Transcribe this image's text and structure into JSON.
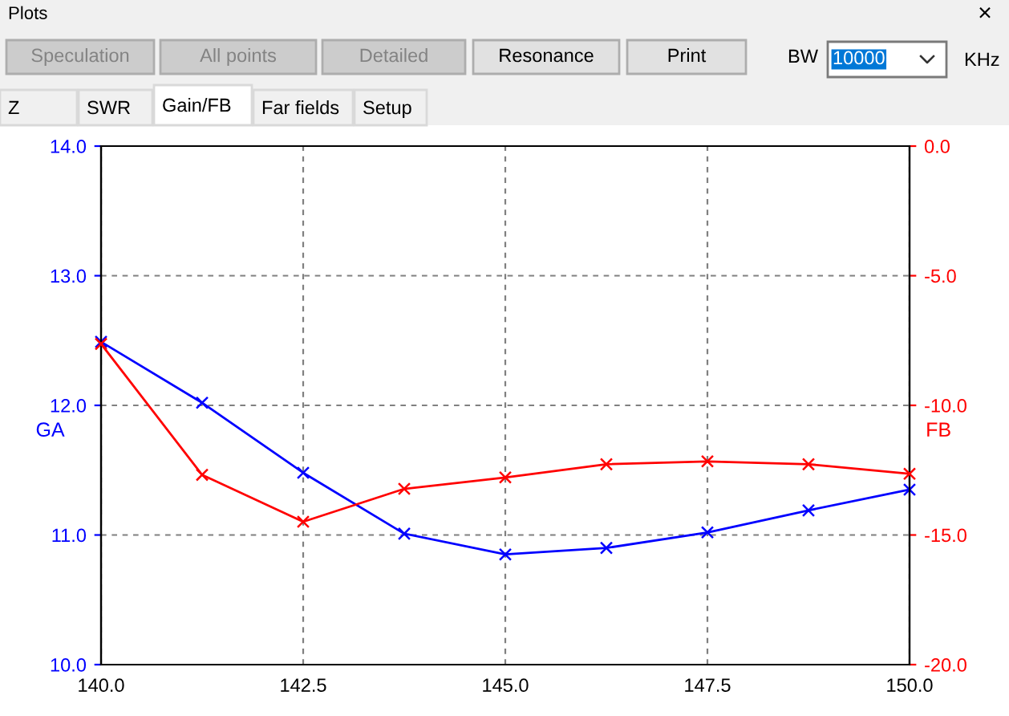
{
  "chart_data": {
    "type": "line",
    "title": "Plots",
    "ylabel": "GA",
    "y2label": "FB",
    "x": [
      140.0,
      141.25,
      142.5,
      143.75,
      145.0,
      146.25,
      147.5,
      148.75,
      150.0
    ],
    "series": [
      {
        "color": "#0000ff",
        "values": [
          12.49,
          12.02,
          11.48,
          11.01,
          10.85,
          10.9,
          11.02,
          11.19,
          11.35
        ]
      },
      {
        "color": "#ff0000",
        "axis": "y2",
        "values": [
          -7.63,
          -12.68,
          -14.49,
          -13.22,
          -12.78,
          -12.27,
          -12.16,
          -12.27,
          -12.64
        ]
      }
    ],
    "xlim": [
      140,
      150
    ],
    "xticks": [
      {
        "value": 140,
        "label": "140.0"
      },
      {
        "value": 142.5,
        "label": "142.5"
      },
      {
        "value": 145,
        "label": "145.0"
      },
      {
        "value": 147.5,
        "label": "147.5"
      },
      {
        "value": 150,
        "label": "150.0"
      }
    ],
    "ylim": [
      10,
      14
    ],
    "yticks": [
      {
        "value": 10,
        "label": "10.0"
      },
      {
        "value": 11,
        "label": "11.0"
      },
      {
        "value": 12,
        "label": "12.0"
      },
      {
        "value": 13,
        "label": "13.0"
      },
      {
        "value": 14,
        "label": "14.0"
      }
    ],
    "y2lim": [
      -20,
      0
    ],
    "y2ticks": [
      {
        "value": -20,
        "label": "-20.0"
      },
      {
        "value": -15,
        "label": "-15.0"
      },
      {
        "value": -10,
        "label": "-10.0"
      },
      {
        "value": -5,
        "label": "-5.0"
      },
      {
        "value": 0,
        "label": "0.0"
      }
    ],
    "grid": true,
    "marker": "cross",
    "line_style": "solid",
    "annotations": [
      "Speculation",
      "All points",
      "Detailed",
      "Resonance",
      "Print",
      "BW",
      "10000",
      "KHz",
      "Z",
      "SWR",
      "Gain/FB",
      "Far fields",
      "Setup",
      "×"
    ]
  }
}
